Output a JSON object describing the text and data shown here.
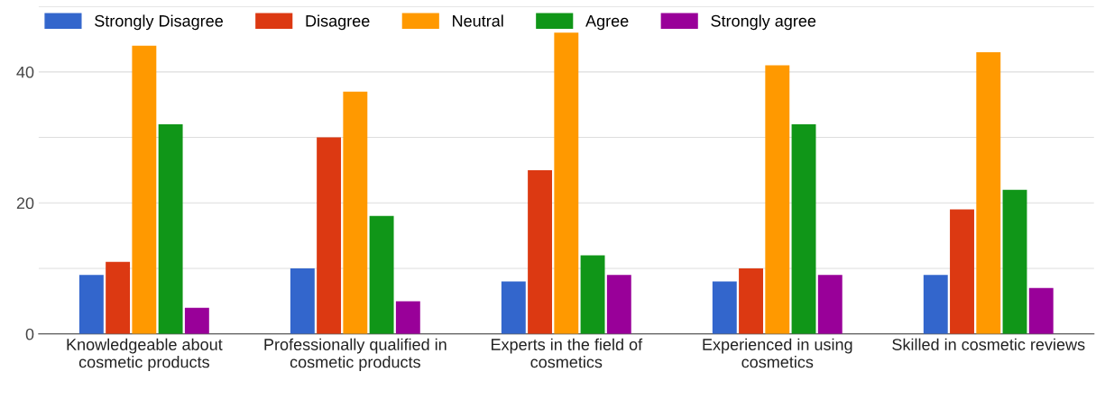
{
  "chart_data": {
    "type": "bar",
    "categories": [
      "Knowledgeable about\ncosmetic products",
      "Professionally qualified in\ncosmetic products",
      "Experts in the field of\ncosmetics",
      "Experienced in using\ncosmetics",
      "Skilled in cosmetic reviews"
    ],
    "series": [
      {
        "name": "Strongly Disagree",
        "color": "#3366cc",
        "values": [
          9,
          10,
          8,
          8,
          9
        ]
      },
      {
        "name": "Disagree",
        "color": "#dc3912",
        "values": [
          11,
          30,
          25,
          10,
          19
        ]
      },
      {
        "name": "Neutral",
        "color": "#ff9900",
        "values": [
          44,
          37,
          46,
          41,
          43
        ]
      },
      {
        "name": "Agree",
        "color": "#109618",
        "values": [
          32,
          18,
          12,
          32,
          22
        ]
      },
      {
        "name": "Strongly agree",
        "color": "#990099",
        "values": [
          4,
          5,
          9,
          9,
          7
        ]
      }
    ],
    "ylim": [
      0,
      50
    ],
    "yticks": [
      0,
      {
        "value": 10,
        "label": null
      },
      20,
      {
        "value": 30,
        "label": null
      },
      40,
      {
        "value": 50,
        "label": null
      }
    ],
    "grid": "y",
    "legend": "top left"
  }
}
